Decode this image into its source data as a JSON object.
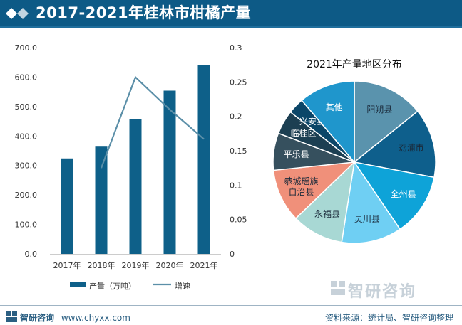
{
  "header": {
    "title": "2017-2021年桂林市柑橘产量"
  },
  "colors": {
    "bar": "#0e6089",
    "line": "#5b8fa8",
    "header_bg": "#0d5a86"
  },
  "chart_data": [
    {
      "type": "bar",
      "categories": [
        "2017年",
        "2018年",
        "2019年",
        "2020年",
        "2021年"
      ],
      "series": [
        {
          "name": "产量（万吨）",
          "axis": "left",
          "values": [
            324,
            364,
            457,
            554,
            642
          ]
        },
        {
          "name": "增速",
          "type": "line",
          "axis": "right",
          "values": [
            null,
            0.125,
            0.257,
            0.21,
            0.167
          ]
        }
      ],
      "y_left": {
        "lim": [
          0,
          700
        ],
        "ticks": [
          "0.0",
          "100.0",
          "200.0",
          "300.0",
          "400.0",
          "500.0",
          "600.0",
          "700.0"
        ]
      },
      "y_right": {
        "lim": [
          0,
          0.3
        ],
        "ticks": [
          "0",
          "0.05",
          "0.1",
          "0.15",
          "0.2",
          "0.25",
          "0.3"
        ]
      },
      "legend": [
        "产量（万吨）",
        "增速"
      ],
      "legend_position": "bottom"
    },
    {
      "type": "pie",
      "title": "2021年产量地区分布",
      "labels": [
        "阳朔县",
        "荔浦市",
        "全州县",
        "灵川县",
        "永福县",
        "恭城瑶族自治县",
        "平乐县",
        "临桂区",
        "兴安县",
        "其他"
      ],
      "label_lines": [
        [
          "阳朔县"
        ],
        [
          "荔浦市"
        ],
        [
          "全州县"
        ],
        [
          "灵川县"
        ],
        [
          "永福县"
        ],
        [
          "恭城瑶族",
          "自治县"
        ],
        [
          "平乐县"
        ],
        [
          "临桂区"
        ],
        [
          "兴安县"
        ],
        [
          "其他"
        ]
      ],
      "values": [
        14.2,
        13.8,
        12.5,
        12.0,
        10.3,
        10.6,
        7.4,
        4.8,
        3.2,
        11.2
      ],
      "colors": [
        "#5a93ad",
        "#0e5f8c",
        "#0ea3d8",
        "#6fcff3",
        "#a8d8d4",
        "#f0907a",
        "#36505e",
        "#1c3f52",
        "#0b4668",
        "#1f96cc"
      ],
      "label_colors": [
        "#1a2a3a",
        "#1a2a3a",
        "#ffffff",
        "#1a2a3a",
        "#1a2a3a",
        "#1a2a3a",
        "#ffffff",
        "#ffffff",
        "#ffffff",
        "#ffffff"
      ]
    }
  ],
  "footer": {
    "left_brand": "智研咨询",
    "left_url": "www.chyxx.com",
    "right_source": "资料来源：统计局、智研咨询整理"
  },
  "watermark": {
    "text": "智研咨询"
  }
}
